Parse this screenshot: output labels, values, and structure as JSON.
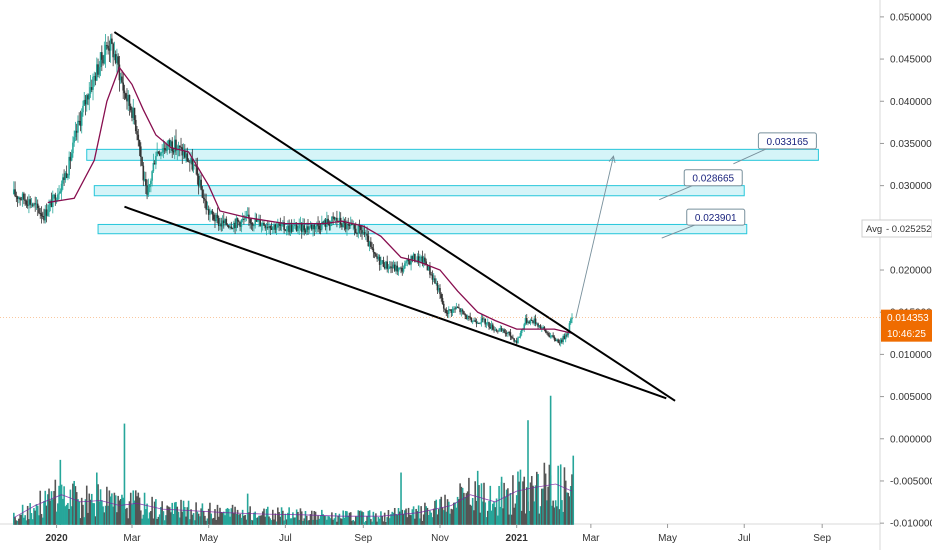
{
  "chart_data": {
    "type": "candlestick",
    "x_axis": {
      "tick_labels": [
        "2020",
        "Mar",
        "May",
        "Jul",
        "Sep",
        "Nov",
        "2021",
        "Mar",
        "May",
        "Jul",
        "Sep"
      ],
      "tick_dates": [
        "2020-01-01",
        "2020-03-01",
        "2020-05-01",
        "2020-07-01",
        "2020-09-01",
        "2020-11-01",
        "2021-01-01",
        "2021-03-01",
        "2021-05-01",
        "2021-07-01",
        "2021-09-01"
      ],
      "range": [
        "2019-11-17",
        "2021-10-17"
      ]
    },
    "y_axis": {
      "side": "right",
      "tick_labels": [
        "0.050000",
        "0.045000",
        "0.040000",
        "0.035000",
        "0.030000",
        "0.025000",
        "0.020000",
        "0.015000",
        "0.010000",
        "0.005000",
        "0.000000",
        "-0.005000",
        "-0.010000"
      ],
      "ticks": [
        0.05,
        0.045,
        0.04,
        0.035,
        0.03,
        0.025,
        0.02,
        0.015,
        0.01,
        0.005,
        0,
        -0.005,
        -0.01
      ],
      "range": [
        -0.0101,
        0.052
      ]
    },
    "price_series": {
      "dates": [
        "2019-11-28",
        "2019-12-10",
        "2019-12-22",
        "2020-01-01",
        "2020-01-10",
        "2020-01-18",
        "2020-01-26",
        "2020-02-03",
        "2020-02-11",
        "2020-02-15",
        "2020-02-19",
        "2020-02-24",
        "2020-03-01",
        "2020-03-06",
        "2020-03-10",
        "2020-03-13",
        "2020-03-20",
        "2020-04-01",
        "2020-04-10",
        "2020-04-20",
        "2020-04-30",
        "2020-05-10",
        "2020-05-20",
        "2020-06-01",
        "2020-06-15",
        "2020-07-01",
        "2020-07-15",
        "2020-08-01",
        "2020-08-10",
        "2020-08-20",
        "2020-09-01",
        "2020-09-10",
        "2020-09-20",
        "2020-10-01",
        "2020-10-10",
        "2020-10-20",
        "2020-10-30",
        "2020-11-05",
        "2020-11-15",
        "2020-11-25",
        "2020-12-05",
        "2020-12-15",
        "2020-12-25",
        "2021-01-01",
        "2021-01-08",
        "2021-01-15",
        "2021-01-22",
        "2021-01-29",
        "2021-02-05",
        "2021-02-10",
        "2021-02-14"
      ],
      "close": [
        0.029,
        0.0282,
        0.0265,
        0.029,
        0.032,
        0.037,
        0.041,
        0.044,
        0.047,
        0.046,
        0.044,
        0.041,
        0.039,
        0.036,
        0.031,
        0.0285,
        0.034,
        0.035,
        0.034,
        0.032,
        0.027,
        0.0255,
        0.0255,
        0.026,
        0.0255,
        0.025,
        0.025,
        0.0255,
        0.026,
        0.025,
        0.0245,
        0.0215,
        0.0205,
        0.02,
        0.0215,
        0.021,
        0.018,
        0.015,
        0.0155,
        0.014,
        0.014,
        0.013,
        0.0125,
        0.0115,
        0.014,
        0.014,
        0.013,
        0.012,
        0.0115,
        0.0125,
        0.0145
      ]
    },
    "moving_average": {
      "color": "#880e4f",
      "dates": [
        "2019-12-25",
        "2020-01-15",
        "2020-01-31",
        "2020-02-10",
        "2020-02-20",
        "2020-03-01",
        "2020-03-10",
        "2020-03-20",
        "2020-04-01",
        "2020-04-15",
        "2020-05-01",
        "2020-05-10",
        "2020-06-01",
        "2020-07-01",
        "2020-08-01",
        "2020-08-15",
        "2020-09-01",
        "2020-09-15",
        "2020-10-01",
        "2020-10-15",
        "2020-11-01",
        "2020-11-15",
        "2020-12-01",
        "2020-12-15",
        "2021-01-01",
        "2021-01-15",
        "2021-01-31",
        "2021-02-14"
      ],
      "values": [
        0.028,
        0.0285,
        0.033,
        0.04,
        0.044,
        0.042,
        0.039,
        0.036,
        0.0345,
        0.034,
        0.03,
        0.027,
        0.0262,
        0.0255,
        0.0255,
        0.0258,
        0.0252,
        0.024,
        0.0215,
        0.021,
        0.02,
        0.0175,
        0.015,
        0.014,
        0.013,
        0.013,
        0.013,
        0.0125
      ]
    },
    "trendlines": [
      {
        "name": "wedge-upper",
        "from": [
          "2020-02-16",
          0.0482
        ],
        "to": [
          "2021-05-07",
          0.0045
        ]
      },
      {
        "name": "wedge-lower",
        "from": [
          "2020-02-24",
          0.0275
        ],
        "to": [
          "2021-04-30",
          0.0048
        ]
      },
      {
        "name": "projection-arrow",
        "from": [
          "2021-02-17",
          0.0143
        ],
        "to": [
          "2021-03-19",
          0.0335
        ]
      }
    ],
    "zones": [
      {
        "label": "0.033165",
        "value_low": 0.033,
        "value_high": 0.0343,
        "from": "2020-01-25",
        "to": "2021-08-29"
      },
      {
        "label": "0.028665",
        "value_low": 0.0288,
        "value_high": 0.03,
        "from": "2020-01-31",
        "to": "2021-07-01"
      },
      {
        "label": "0.023901",
        "value_low": 0.0243,
        "value_high": 0.0254,
        "from": "2020-02-03",
        "to": "2021-07-03"
      }
    ],
    "markers": {
      "avg_label": "Avg",
      "avg_value": "0.025252",
      "last_price": "0.014353",
      "last_price_value": 0.014353,
      "countdown": "10:46:25"
    },
    "volume": {
      "baseline_value": -0.0102,
      "dates": [
        "2019-11-28",
        "2019-12-15",
        "2020-01-05",
        "2020-01-20",
        "2020-02-05",
        "2020-02-20",
        "2020-03-05",
        "2020-03-25",
        "2020-04-15",
        "2020-05-15",
        "2020-06-15",
        "2020-07-15",
        "2020-08-15",
        "2020-09-15",
        "2020-10-15",
        "2020-11-10",
        "2020-11-25",
        "2020-12-15",
        "2021-01-01",
        "2021-01-15",
        "2021-02-01",
        "2021-02-14"
      ],
      "values": [
        -0.0092,
        -0.0075,
        -0.006,
        -0.007,
        -0.0068,
        -0.0075,
        -0.0072,
        -0.008,
        -0.0082,
        -0.0085,
        -0.0087,
        -0.0088,
        -0.009,
        -0.009,
        -0.0085,
        -0.0075,
        -0.006,
        -0.007,
        -0.0055,
        -0.005,
        -0.0045,
        -0.0055
      ],
      "spikes": [
        [
          "2020-01-04",
          -0.0025
        ],
        [
          "2020-01-15",
          -0.005
        ],
        [
          "2020-02-02",
          -0.004
        ],
        [
          "2020-02-24",
          0.0018
        ],
        [
          "2020-06-01",
          -0.0065
        ],
        [
          "2020-10-01",
          -0.004
        ],
        [
          "2020-12-01",
          -0.0038
        ],
        [
          "2020-12-20",
          -0.0045
        ],
        [
          "2021-01-10",
          0.0022
        ],
        [
          "2021-01-28",
          0.0051
        ],
        [
          "2021-02-15",
          -0.002
        ]
      ],
      "colors": {
        "up": "#26a69a",
        "down": "#555555"
      }
    },
    "colors": {
      "up": "#26a69a",
      "down": "#333333",
      "zone_fill": "#b2ebf2",
      "zone_stroke": "#26c6da",
      "label_text": "#1a237e",
      "label_stroke": "#78909c",
      "last_price_bg": "#ef6c00",
      "axis_text": "#333333"
    }
  }
}
